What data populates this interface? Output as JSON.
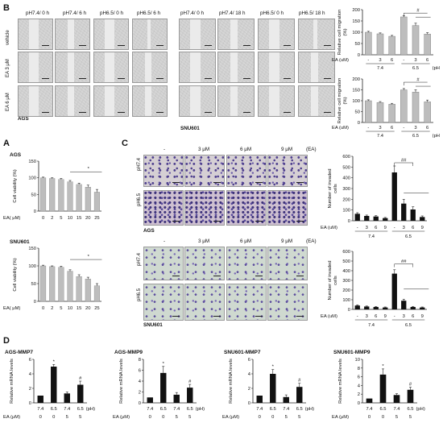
{
  "panels": {
    "B": "B",
    "A": "A",
    "C": "C",
    "D": "D"
  },
  "B": {
    "ags_cols": [
      "pH7.4/ 0 h",
      "pH7.4/ 6 h",
      "pH6.5/ 0 h",
      "pH6.5/ 6 h"
    ],
    "snu_cols": [
      "pH7.4/ 0 h",
      "pH7.4/ 18 h",
      "pH6.5/ 0 h",
      "pH6.5/ 18 h"
    ],
    "rows": [
      "vehicle",
      "EA 3 μM",
      "EA 6 μM"
    ],
    "ags_label": "AGS",
    "snu_label": "SNU601",
    "ylabel": "Relative cell migration (%)",
    "ea_label": "EA (uM)",
    "dose_ticks": [
      "-",
      "3",
      "6",
      "-",
      "3",
      "6"
    ],
    "ph_ticks": [
      "7.4",
      "6.5"
    ],
    "ph_unit": "(pH)",
    "sig": "#"
  },
  "A": {
    "ylabel": "Cell viability (%)",
    "xlabel": "EA( μM)",
    "ticks_x": [
      "0",
      "2",
      "5",
      "10",
      "15",
      "20",
      "25"
    ],
    "sig": "*"
  },
  "C": {
    "cols": [
      "-",
      "3 μM",
      "6 μM",
      "9 μM"
    ],
    "ea_tag": "(EA)",
    "rows": [
      "pH7.4",
      "pH6.5"
    ],
    "ags_label": "AGS",
    "snu_label": "SNU601",
    "ylabel": "Number of invaded cells",
    "ea_label": "EA (uM)",
    "dose_ticks": [
      "-",
      "3",
      "6",
      "9",
      "-",
      "3",
      "6",
      "9"
    ],
    "ph_ticks": [
      "7.4",
      "6.5"
    ],
    "sig": "##"
  },
  "D": {
    "ylabel": "Relative mRNA levels",
    "ph_label": "(pH)",
    "ea_label": "EA (μM)",
    "ph_ticks": [
      "7.4",
      "6.5",
      "7.4",
      "6.5"
    ],
    "ea_ticks": [
      "0",
      "0",
      "5",
      "5"
    ]
  },
  "chart_data": [
    {
      "id": "B1",
      "type": "bar",
      "title": "",
      "ylabel": "Relative cell migration (%)",
      "ylim": [
        0,
        200
      ],
      "yticks": [
        0,
        50,
        100,
        150,
        200
      ],
      "categories": [
        "-",
        "3",
        "6",
        "-",
        "3",
        "6"
      ],
      "values": [
        100,
        93,
        82,
        168,
        130,
        92
      ],
      "errors": [
        4,
        4,
        4,
        6,
        10,
        6
      ]
    },
    {
      "id": "B2",
      "type": "bar",
      "title": "",
      "ylabel": "Relative cell migration (%)",
      "ylim": [
        0,
        200
      ],
      "yticks": [
        0,
        50,
        100,
        150,
        200
      ],
      "categories": [
        "-",
        "3",
        "6",
        "-",
        "3",
        "6"
      ],
      "values": [
        100,
        92,
        84,
        150,
        140,
        95
      ],
      "errors": [
        4,
        4,
        4,
        6,
        10,
        8
      ]
    },
    {
      "id": "A1",
      "type": "bar",
      "title": "AGS",
      "ylabel": "Cell viability (%)",
      "xlabel": "EA( μM)",
      "ylim": [
        0,
        150
      ],
      "yticks": [
        0,
        50,
        100,
        150
      ],
      "categories": [
        "0",
        "2",
        "5",
        "10",
        "15",
        "20",
        "25"
      ],
      "values": [
        100,
        98,
        95,
        88,
        80,
        72,
        57
      ],
      "errors": [
        2,
        2,
        3,
        4,
        4,
        6,
        8
      ]
    },
    {
      "id": "A2",
      "type": "bar",
      "title": "SNU601",
      "ylabel": "Cell viability (%)",
      "xlabel": "EA( μM)",
      "ylim": [
        0,
        150
      ],
      "yticks": [
        0,
        50,
        100,
        150
      ],
      "categories": [
        "0",
        "2",
        "5",
        "10",
        "15",
        "20",
        "25"
      ],
      "values": [
        100,
        98,
        96,
        85,
        70,
        63,
        44
      ],
      "errors": [
        2,
        2,
        3,
        4,
        5,
        5,
        6
      ]
    },
    {
      "id": "C1",
      "type": "bar",
      "title": "",
      "ylabel": "Number of invaded cells",
      "ylim": [
        0,
        600
      ],
      "yticks": [
        0,
        100,
        200,
        300,
        400,
        500,
        600
      ],
      "categories": [
        "-",
        "3",
        "6",
        "9",
        "-",
        "3",
        "6",
        "9"
      ],
      "values": [
        65,
        45,
        40,
        25,
        450,
        160,
        105,
        35
      ],
      "errors": [
        10,
        8,
        8,
        6,
        60,
        40,
        25,
        10
      ]
    },
    {
      "id": "C2",
      "type": "bar",
      "title": "",
      "ylabel": "Number of invaded cells",
      "ylim": [
        0,
        600
      ],
      "yticks": [
        0,
        100,
        200,
        300,
        400,
        500,
        600
      ],
      "categories": [
        "-",
        "3",
        "6",
        "9",
        "-",
        "3",
        "6",
        "9"
      ],
      "values": [
        40,
        30,
        25,
        20,
        370,
        90,
        25,
        20
      ],
      "errors": [
        6,
        5,
        5,
        5,
        40,
        15,
        6,
        5
      ]
    },
    {
      "id": "D1",
      "type": "bar",
      "title": "AGS-MMP7",
      "ylabel": "Relative mRNA levels",
      "ylim": [
        0,
        6
      ],
      "yticks": [
        0,
        2,
        4,
        6
      ],
      "categories": [
        "7.4/0",
        "6.5/0",
        "7.4/5",
        "6.5/5"
      ],
      "values": [
        1,
        5,
        1.3,
        2.5
      ],
      "errors": [
        0,
        0.3,
        0.2,
        0.5
      ]
    },
    {
      "id": "D2",
      "type": "bar",
      "title": "AGS-MMP9",
      "ylabel": "Relative mRNA levels",
      "ylim": [
        0,
        8
      ],
      "yticks": [
        0,
        2,
        4,
        6,
        8
      ],
      "categories": [
        "7.4/0",
        "6.5/0",
        "7.4/5",
        "6.5/5"
      ],
      "values": [
        1,
        5.5,
        1.5,
        2.8
      ],
      "errors": [
        0,
        1.2,
        0.4,
        0.6
      ]
    },
    {
      "id": "D3",
      "type": "bar",
      "title": "SNU601-MMP7",
      "ylabel": "Relative mRNA levels",
      "ylim": [
        0,
        6
      ],
      "yticks": [
        0,
        2,
        4,
        6
      ],
      "categories": [
        "7.4/0",
        "6.5/0",
        "7.4/5",
        "6.5/5"
      ],
      "values": [
        1,
        4,
        0.8,
        2.2
      ],
      "errors": [
        0,
        0.6,
        0.3,
        0.5
      ]
    },
    {
      "id": "D4",
      "type": "bar",
      "title": "SNU601-MMP9",
      "ylabel": "Relative mRNA levels",
      "ylim": [
        0,
        10
      ],
      "yticks": [
        0,
        2,
        4,
        6,
        8,
        10
      ],
      "categories": [
        "7.4/0",
        "6.5/0",
        "7.4/5",
        "6.5/5"
      ],
      "values": [
        1,
        6.5,
        1.8,
        3
      ],
      "errors": [
        0,
        1.3,
        0.3,
        0.6
      ]
    }
  ]
}
